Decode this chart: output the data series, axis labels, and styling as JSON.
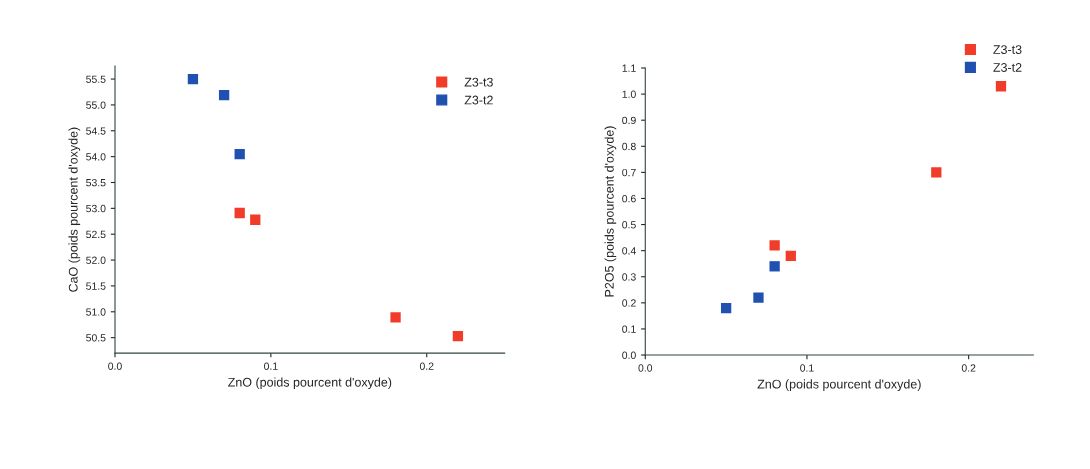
{
  "chart_data": [
    {
      "type": "scatter",
      "xlabel": "ZnO (poids pourcent d'oxyde)",
      "ylabel": "CaO (poids pourcent d'oxyde)",
      "xlim": [
        0,
        0.25
      ],
      "ylim": [
        50.2,
        55.75
      ],
      "xticks": [
        {
          "value": 0,
          "label": "0.0"
        },
        {
          "value": 0.1,
          "label": "0.1"
        },
        {
          "value": 0.2,
          "label": "0.2"
        }
      ],
      "yticks": [
        50.5,
        {
          "value": 51,
          "label": "51.0"
        },
        51.5,
        {
          "value": 52,
          "label": "52.0"
        },
        52.5,
        {
          "value": 53,
          "label": "53.0"
        },
        53.5,
        {
          "value": 54,
          "label": "54.0"
        },
        54.5,
        {
          "value": 55,
          "label": "55.0"
        },
        55.5
      ],
      "marker": "square",
      "legend": "top right",
      "grid": false,
      "series": [
        {
          "name": "Z3-t3",
          "color": "#f03c28",
          "x": [
            0.08,
            0.09,
            0.18,
            0.22
          ],
          "values": [
            52.91,
            52.78,
            50.89,
            50.53
          ]
        },
        {
          "name": "Z3-t2",
          "color": "#2050b0",
          "x": [
            0.05,
            0.07,
            0.08
          ],
          "values": [
            55.5,
            55.19,
            54.05
          ]
        }
      ]
    },
    {
      "type": "scatter",
      "xlabel": "ZnO (poids pourcent d'oxyde)",
      "ylabel": "P2O5 (poids pourcent d'oxyde)",
      "xlim": [
        0,
        0.24
      ],
      "ylim": [
        0,
        1.1
      ],
      "xticks": [
        {
          "value": 0,
          "label": "0.0"
        },
        {
          "value": 0.1,
          "label": "0.1"
        },
        {
          "value": 0.2,
          "label": "0.2"
        }
      ],
      "yticks": [
        {
          "value": 0,
          "label": "0.0"
        },
        0.1,
        0.2,
        0.3,
        0.4,
        0.5,
        0.6,
        0.7,
        0.8,
        0.9,
        {
          "value": 1,
          "label": "1.0"
        },
        1.1
      ],
      "marker": "square",
      "legend": "top right",
      "grid": false,
      "series": [
        {
          "name": "Z3-t3",
          "color": "#f03c28",
          "x": [
            0.08,
            0.09,
            0.18,
            0.22
          ],
          "values": [
            0.42,
            0.38,
            0.7,
            1.03
          ]
        },
        {
          "name": "Z3-t2",
          "color": "#2050b0",
          "x": [
            0.05,
            0.07,
            0.08
          ],
          "values": [
            0.18,
            0.22,
            0.34
          ]
        }
      ]
    }
  ]
}
